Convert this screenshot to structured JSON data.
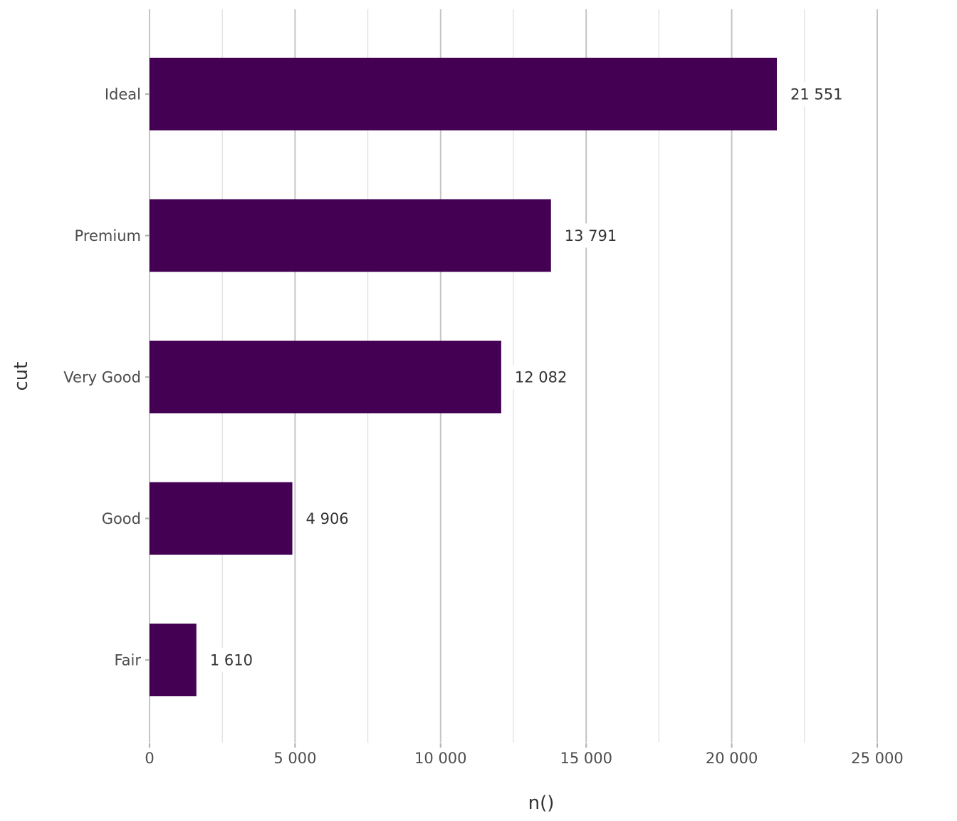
{
  "chart_data": {
    "type": "bar",
    "orientation": "horizontal",
    "categories": [
      "Ideal",
      "Premium",
      "Very Good",
      "Good",
      "Fair"
    ],
    "values": [
      21551,
      13791,
      12082,
      4906,
      1610
    ],
    "value_labels": [
      "21 551",
      "13 791",
      "12 082",
      "4 906",
      "1 610"
    ],
    "xlabel": "n()",
    "ylabel": "cut",
    "xlim": [
      0,
      25000
    ],
    "x_ticks": [
      0,
      5000,
      10000,
      15000,
      20000,
      25000
    ],
    "x_tick_labels": [
      "0",
      "5 000",
      "10 000",
      "15 000",
      "20 000",
      "25 000"
    ],
    "grid": true,
    "bar_color": "#440154"
  }
}
